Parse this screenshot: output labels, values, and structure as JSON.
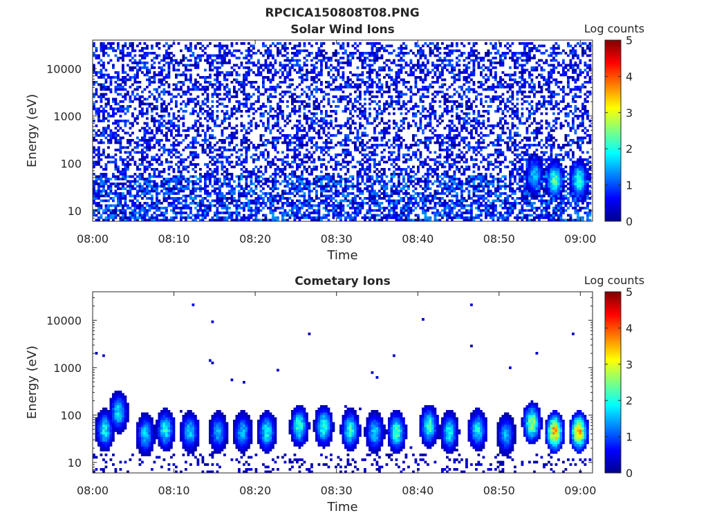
{
  "figure": {
    "title": "RPCICA150808T08.PNG"
  },
  "chart_data": [
    {
      "type": "heatmap",
      "id": "solar",
      "title": "Solar Wind Ions",
      "xlabel": "Time",
      "ylabel": "Energy (eV)",
      "x_ticks": [
        "08:00",
        "08:10",
        "08:20",
        "08:30",
        "08:40",
        "08:50",
        "09:00"
      ],
      "x_tick_minutes": [
        0,
        10,
        20,
        30,
        40,
        50,
        60
      ],
      "xlim_minutes": [
        0,
        61.5
      ],
      "y_scale": "log",
      "y_ticks": [
        "10",
        "100",
        "1000",
        "10000"
      ],
      "y_tick_values": [
        10,
        100,
        1000,
        10000
      ],
      "ylim": [
        6,
        40000
      ],
      "colorbar": {
        "label": "Log counts",
        "ticks": [
          "0",
          "1",
          "2",
          "3",
          "4",
          "5"
        ],
        "range": [
          0,
          5
        ]
      },
      "features": {
        "background_max": 1.1,
        "low_energy_max": 1.4,
        "bursts": [
          {
            "minute": 54.5,
            "energy_eV": 60,
            "peak": 1.7
          },
          {
            "minute": 57.0,
            "energy_eV": 45,
            "peak": 2.4
          },
          {
            "minute": 60.0,
            "energy_eV": 45,
            "peak": 2.3
          }
        ]
      }
    },
    {
      "type": "heatmap",
      "id": "comet",
      "title": "Cometary Ions",
      "xlabel": "Time",
      "ylabel": "Energy (eV)",
      "x_ticks": [
        "08:00",
        "08:10",
        "08:20",
        "08:30",
        "08:40",
        "08:50",
        "09:00"
      ],
      "x_tick_minutes": [
        0,
        10,
        20,
        30,
        40,
        50,
        60
      ],
      "xlim_minutes": [
        0,
        61.5
      ],
      "y_scale": "log",
      "y_ticks": [
        "10",
        "100",
        "1000",
        "10000"
      ],
      "y_tick_values": [
        10,
        100,
        1000,
        10000
      ],
      "ylim": [
        6,
        40000
      ],
      "colorbar": {
        "label": "Log counts",
        "ticks": [
          "0",
          "1",
          "2",
          "3",
          "4",
          "5"
        ],
        "range": [
          0,
          5
        ]
      },
      "features": {
        "bursts": [
          {
            "minute": 1.5,
            "energy_eV": 50,
            "peak": 2.0
          },
          {
            "minute": 3.2,
            "energy_eV": 120,
            "peak": 1.9
          },
          {
            "minute": 6.5,
            "energy_eV": 40,
            "peak": 1.8
          },
          {
            "minute": 9.0,
            "energy_eV": 50,
            "peak": 2.1
          },
          {
            "minute": 12.0,
            "energy_eV": 45,
            "peak": 1.8
          },
          {
            "minute": 15.5,
            "energy_eV": 45,
            "peak": 1.6
          },
          {
            "minute": 18.5,
            "energy_eV": 45,
            "peak": 1.7
          },
          {
            "minute": 21.5,
            "energy_eV": 45,
            "peak": 2.0
          },
          {
            "minute": 25.5,
            "energy_eV": 60,
            "peak": 2.3
          },
          {
            "minute": 28.5,
            "energy_eV": 60,
            "peak": 2.3
          },
          {
            "minute": 31.8,
            "energy_eV": 50,
            "peak": 2.2
          },
          {
            "minute": 34.8,
            "energy_eV": 45,
            "peak": 1.8
          },
          {
            "minute": 37.5,
            "energy_eV": 45,
            "peak": 2.4
          },
          {
            "minute": 41.5,
            "energy_eV": 60,
            "peak": 2.3
          },
          {
            "minute": 44.0,
            "energy_eV": 45,
            "peak": 2.0
          },
          {
            "minute": 47.5,
            "energy_eV": 50,
            "peak": 2.0
          },
          {
            "minute": 51.0,
            "energy_eV": 40,
            "peak": 1.6
          },
          {
            "minute": 54.2,
            "energy_eV": 70,
            "peak": 2.8
          },
          {
            "minute": 57.0,
            "energy_eV": 45,
            "peak": 3.7
          },
          {
            "minute": 60.0,
            "energy_eV": 45,
            "peak": 3.6
          }
        ]
      }
    }
  ]
}
